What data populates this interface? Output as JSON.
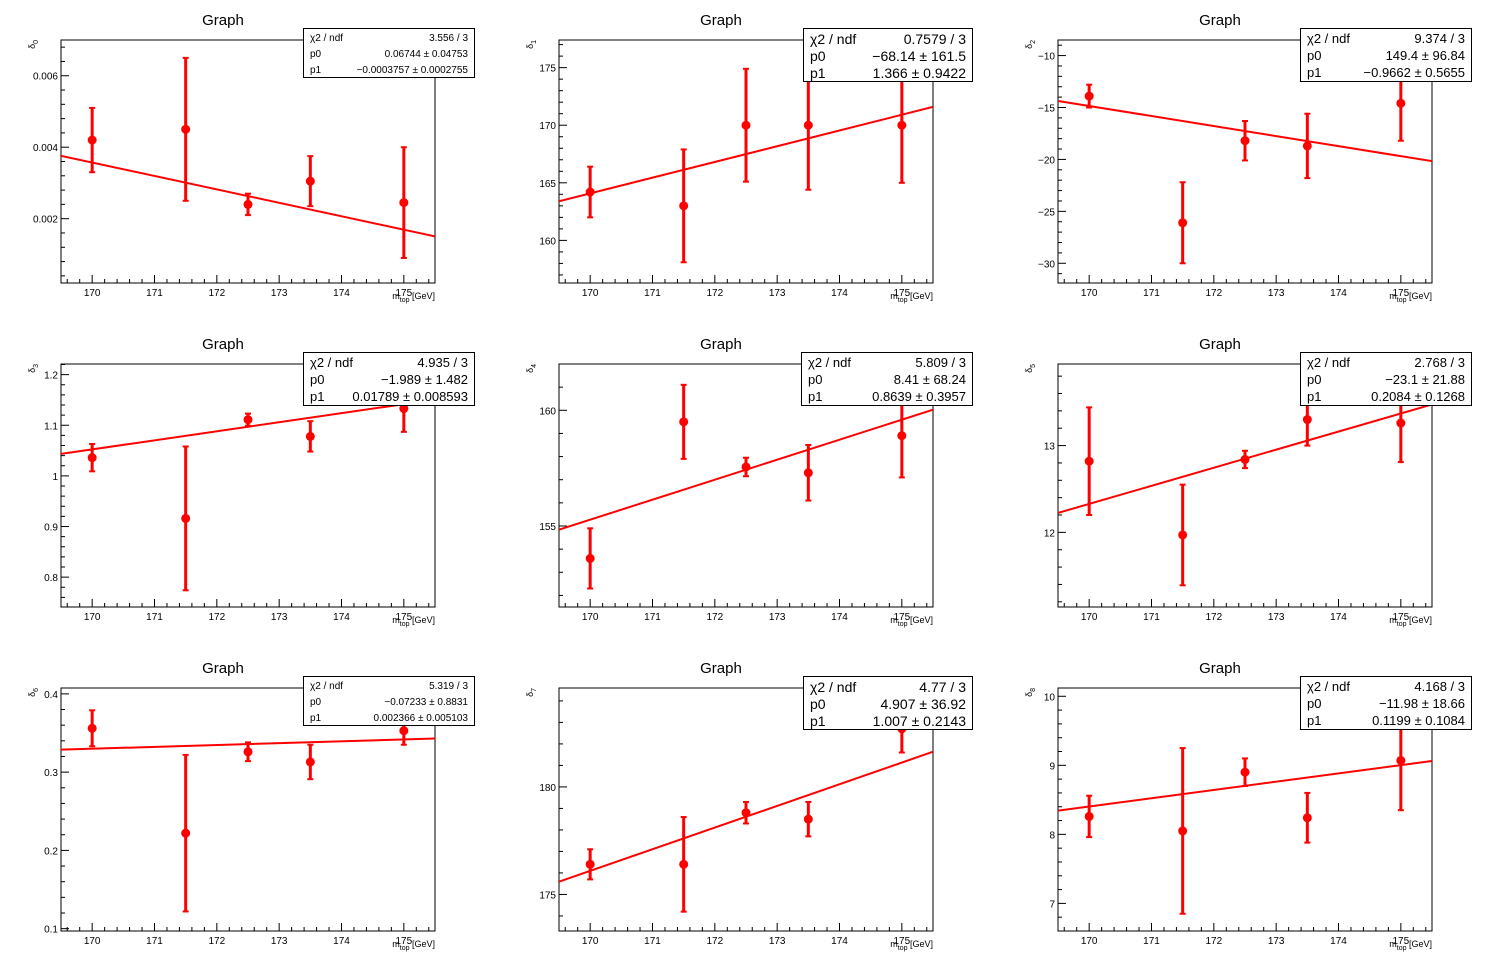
{
  "colors": {
    "data": "#ff0000",
    "fit": "#ff0000",
    "axis": "#000000"
  },
  "chart_data": [
    {
      "type": "scatter",
      "title": "Graph",
      "xlabel_main": "m",
      "xlabel_sub": "top",
      "xlabel_unit": " [GeV]",
      "ylabel_main": "δ",
      "ylabel_sub": "0",
      "xlim": [
        169.5,
        175.5
      ],
      "ylim": [
        0.0002,
        0.007
      ],
      "xticks": [
        170,
        171,
        172,
        173,
        174,
        175
      ],
      "yticks": [
        0.002,
        0.004,
        0.006
      ],
      "ytick_labels": [
        "0.002",
        "0.004",
        "0.006"
      ],
      "x": [
        170,
        171.5,
        172.5,
        173.5,
        175
      ],
      "y": [
        0.0042,
        0.0045,
        0.0024,
        0.00305,
        0.00245
      ],
      "yerr": [
        0.0009,
        0.002,
        0.0003,
        0.0007,
        0.00155
      ],
      "fit": {
        "p0": 0.06744,
        "p1": -0.0003757
      },
      "stats": [
        {
          "key": "χ2 / ndf",
          "value": "3.556 / 3"
        },
        {
          "key": "p0",
          "value": "0.06744 ± 0.04753"
        },
        {
          "key": "p1",
          "value": "−0.0003757 ± 0.0002755"
        }
      ],
      "statsize": "small"
    },
    {
      "type": "scatter",
      "title": "Graph",
      "xlabel_main": "m",
      "xlabel_sub": "top",
      "xlabel_unit": " [GeV]",
      "ylabel_main": "δ",
      "ylabel_sub": "1",
      "xlim": [
        169.5,
        175.5
      ],
      "ylim": [
        156.3,
        177.4
      ],
      "xticks": [
        170,
        171,
        172,
        173,
        174,
        175
      ],
      "yticks": [
        160,
        165,
        170,
        175
      ],
      "ytick_labels": [
        "160",
        "165",
        "170",
        "175"
      ],
      "x": [
        170,
        171.5,
        172.5,
        173.5,
        175
      ],
      "y": [
        164.2,
        163,
        170,
        170,
        170
      ],
      "yerr": [
        2.2,
        4.9,
        4.9,
        5.6,
        5.0
      ],
      "fit": {
        "p0": -68.14,
        "p1": 1.366
      },
      "stats": [
        {
          "key": "χ2 / ndf",
          "value": "0.7579 / 3"
        },
        {
          "key": "p0",
          "value": "−68.14 ± 161.5"
        },
        {
          "key": "p1",
          "value": "1.366 ± 0.9422"
        }
      ],
      "statsize": "big"
    },
    {
      "type": "scatter",
      "title": "Graph",
      "xlabel_main": "m",
      "xlabel_sub": "top",
      "xlabel_unit": " [GeV]",
      "ylabel_main": "δ",
      "ylabel_sub": "2",
      "xlim": [
        169.5,
        175.5
      ],
      "ylim": [
        -31.9,
        -8.5
      ],
      "xticks": [
        170,
        171,
        172,
        173,
        174,
        175
      ],
      "yticks": [
        -30,
        -25,
        -20,
        -15,
        -10
      ],
      "ytick_labels": [
        "−30",
        "−25",
        "−20",
        "−15",
        "−10"
      ],
      "x": [
        170,
        171.5,
        172.5,
        173.5,
        175
      ],
      "y": [
        -13.9,
        -26.1,
        -18.2,
        -18.7,
        -14.6
      ],
      "yerr": [
        1.1,
        3.9,
        1.9,
        3.1,
        3.6
      ],
      "fit": {
        "p0": 149.4,
        "p1": -0.9662
      },
      "stats": [
        {
          "key": "χ2 / ndf",
          "value": "9.374 / 3"
        },
        {
          "key": "p0",
          "value": "149.4 ± 96.84"
        },
        {
          "key": "p1",
          "value": "−0.9662 ± 0.5655"
        }
      ],
      "statsize": "mid"
    },
    {
      "type": "scatter",
      "title": "Graph",
      "xlabel_main": "m",
      "xlabel_sub": "top",
      "xlabel_unit": " [GeV]",
      "ylabel_main": "δ",
      "ylabel_sub": "3",
      "xlim": [
        169.5,
        175.5
      ],
      "ylim": [
        0.741,
        1.221
      ],
      "xticks": [
        170,
        171,
        172,
        173,
        174,
        175
      ],
      "yticks": [
        0.8,
        0.9,
        1.0,
        1.1,
        1.2
      ],
      "ytick_labels": [
        "0.8",
        "0.9",
        "1",
        "1.1",
        "1.2"
      ],
      "x": [
        170,
        171.5,
        172.5,
        173.5,
        175
      ],
      "y": [
        1.036,
        0.916,
        1.111,
        1.078,
        1.133
      ],
      "yerr": [
        0.027,
        0.142,
        0.012,
        0.03,
        0.046
      ],
      "fit": {
        "p0": -1.989,
        "p1": 0.01789
      },
      "stats": [
        {
          "key": "χ2 / ndf",
          "value": "4.935 / 3"
        },
        {
          "key": "p0",
          "value": "−1.989 ± 1.482"
        },
        {
          "key": "p1",
          "value": "0.01789 ± 0.008593"
        }
      ],
      "statsize": "mid"
    },
    {
      "type": "scatter",
      "title": "Graph",
      "xlabel_main": "m",
      "xlabel_sub": "top",
      "xlabel_unit": " [GeV]",
      "ylabel_main": "δ",
      "ylabel_sub": "4",
      "xlim": [
        169.5,
        175.5
      ],
      "ylim": [
        151.5,
        162.0
      ],
      "xticks": [
        170,
        171,
        172,
        173,
        174,
        175
      ],
      "yticks": [
        155,
        160
      ],
      "ytick_labels": [
        "155",
        "160"
      ],
      "x": [
        170,
        171.5,
        172.5,
        173.5,
        175
      ],
      "y": [
        153.6,
        159.5,
        157.55,
        157.3,
        158.9
      ],
      "yerr": [
        1.3,
        1.6,
        0.4,
        1.2,
        1.8
      ],
      "fit": {
        "p0": 8.41,
        "p1": 0.8639
      },
      "stats": [
        {
          "key": "χ2 / ndf",
          "value": "5.809 / 3"
        },
        {
          "key": "p0",
          "value": "8.41 ± 68.24"
        },
        {
          "key": "p1",
          "value": "0.8639 ± 0.3957"
        }
      ],
      "statsize": "mid"
    },
    {
      "type": "scatter",
      "title": "Graph",
      "xlabel_main": "m",
      "xlabel_sub": "top",
      "xlabel_unit": " [GeV]",
      "ylabel_main": "δ",
      "ylabel_sub": "5",
      "xlim": [
        169.5,
        175.5
      ],
      "ylim": [
        11.14,
        13.94
      ],
      "xticks": [
        170,
        171,
        172,
        173,
        174,
        175
      ],
      "yticks": [
        12,
        13
      ],
      "ytick_labels": [
        "12",
        "13"
      ],
      "x": [
        170,
        171.5,
        172.5,
        173.5,
        175
      ],
      "y": [
        12.82,
        11.97,
        12.84,
        13.3,
        13.26
      ],
      "yerr": [
        0.62,
        0.58,
        0.1,
        0.3,
        0.45
      ],
      "fit": {
        "p0": -23.1,
        "p1": 0.2084
      },
      "stats": [
        {
          "key": "χ2 / ndf",
          "value": "2.768 / 3"
        },
        {
          "key": "p0",
          "value": "−23.1 ± 21.88"
        },
        {
          "key": "p1",
          "value": "0.2084 ± 0.1268"
        }
      ],
      "statsize": "mid"
    },
    {
      "type": "scatter",
      "title": "Graph",
      "xlabel_main": "m",
      "xlabel_sub": "top",
      "xlabel_unit": " [GeV]",
      "ylabel_main": "δ",
      "ylabel_sub": "6",
      "xlim": [
        169.5,
        175.5
      ],
      "ylim": [
        0.097,
        0.4075
      ],
      "xticks": [
        170,
        171,
        172,
        173,
        174,
        175
      ],
      "yticks": [
        0.1,
        0.2,
        0.3,
        0.4
      ],
      "ytick_labels": [
        "0.1",
        "0.2",
        "0.3",
        "0.4"
      ],
      "x": [
        170,
        171.5,
        172.5,
        173.5,
        175
      ],
      "y": [
        0.356,
        0.222,
        0.326,
        0.313,
        0.353
      ],
      "yerr": [
        0.023,
        0.1,
        0.012,
        0.022,
        0.018
      ],
      "fit": {
        "p0": -0.07233,
        "p1": 0.002366
      },
      "stats": [
        {
          "key": "χ2 / ndf",
          "value": "5.319 / 3"
        },
        {
          "key": "p0",
          "value": "−0.07233 ± 0.8831"
        },
        {
          "key": "p1",
          "value": "0.002366 ± 0.005103"
        }
      ],
      "statsize": "small"
    },
    {
      "type": "scatter",
      "title": "Graph",
      "xlabel_main": "m",
      "xlabel_sub": "top",
      "xlabel_unit": " [GeV]",
      "ylabel_main": "δ",
      "ylabel_sub": "7",
      "xlim": [
        169.5,
        175.5
      ],
      "ylim": [
        173.3,
        184.6
      ],
      "xticks": [
        170,
        171,
        172,
        173,
        174,
        175
      ],
      "yticks": [
        175,
        180
      ],
      "ytick_labels": [
        "175",
        "180"
      ],
      "x": [
        170,
        171.5,
        172.5,
        173.5,
        175
      ],
      "y": [
        176.4,
        176.4,
        178.8,
        178.5,
        182.7
      ],
      "yerr": [
        0.7,
        2.2,
        0.5,
        0.8,
        1.1
      ],
      "fit": {
        "p0": 4.907,
        "p1": 1.007
      },
      "stats": [
        {
          "key": "χ2 / ndf",
          "value": "4.77 / 3"
        },
        {
          "key": "p0",
          "value": "4.907 ± 36.92"
        },
        {
          "key": "p1",
          "value": "1.007 ± 0.2143"
        }
      ],
      "statsize": "big"
    },
    {
      "type": "scatter",
      "title": "Graph",
      "xlabel_main": "m",
      "xlabel_sub": "top",
      "xlabel_unit": " [GeV]",
      "ylabel_main": "δ",
      "ylabel_sub": "8",
      "xlim": [
        169.5,
        175.5
      ],
      "ylim": [
        6.6,
        10.12
      ],
      "xticks": [
        170,
        171,
        172,
        173,
        174,
        175
      ],
      "yticks": [
        7,
        8,
        9,
        10
      ],
      "ytick_labels": [
        "7",
        "8",
        "9",
        "10"
      ],
      "x": [
        170,
        171.5,
        172.5,
        173.5,
        175
      ],
      "y": [
        8.26,
        8.05,
        8.9,
        8.24,
        9.07
      ],
      "yerr": [
        0.3,
        1.2,
        0.2,
        0.36,
        0.72
      ],
      "fit": {
        "p0": -11.98,
        "p1": 0.1199
      },
      "stats": [
        {
          "key": "χ2 / ndf",
          "value": "4.168 / 3"
        },
        {
          "key": "p0",
          "value": "−11.98 ± 18.66"
        },
        {
          "key": "p1",
          "value": "0.1199 ± 0.1084"
        }
      ],
      "statsize": "mid"
    }
  ]
}
